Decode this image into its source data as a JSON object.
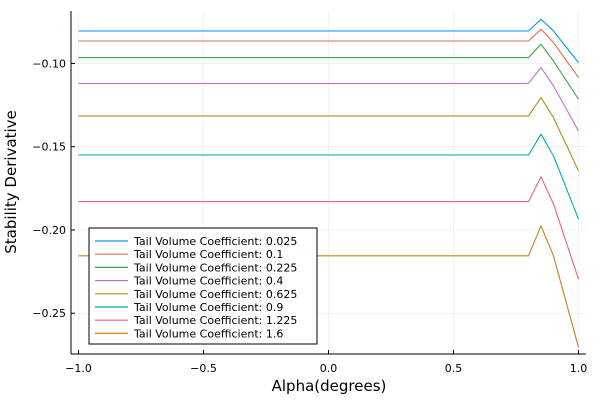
{
  "chart_data": {
    "type": "line",
    "title": "",
    "xlabel": "Alpha(degrees)",
    "ylabel": "Stability Derivative",
    "xlim": [
      -1.03,
      1.03
    ],
    "ylim": [
      -0.2745,
      -0.0685
    ],
    "xticks": [
      -1.0,
      -0.5,
      0.0,
      0.5,
      1.0
    ],
    "xtick_labels": [
      "−1.0",
      "−0.5",
      "0.0",
      "0.5",
      "1.0"
    ],
    "yticks": [
      -0.25,
      -0.2,
      -0.15,
      -0.1
    ],
    "ytick_labels": [
      "−0.25",
      "−0.20",
      "−0.15",
      "−0.10"
    ],
    "grid": true,
    "legend_position": "bottom-left",
    "x": [
      -1.0,
      0.8,
      0.85,
      0.9,
      1.0
    ],
    "series": [
      {
        "name": "Tail Volume Coefficient: 0.025",
        "color": "#009af9",
        "values": [
          -0.0805,
          -0.0805,
          -0.0735,
          -0.0805,
          -0.0995
        ]
      },
      {
        "name": "Tail Volume Coefficient: 0.1",
        "color": "#e26f46",
        "values": [
          -0.0865,
          -0.0865,
          -0.0795,
          -0.0875,
          -0.1085
        ]
      },
      {
        "name": "Tail Volume Coefficient: 0.225",
        "color": "#3da44d",
        "values": [
          -0.0965,
          -0.0965,
          -0.0885,
          -0.0985,
          -0.1215
        ]
      },
      {
        "name": "Tail Volume Coefficient: 0.4",
        "color": "#c271d2",
        "values": [
          -0.112,
          -0.112,
          -0.1025,
          -0.1135,
          -0.1405
        ]
      },
      {
        "name": "Tail Volume Coefficient: 0.625",
        "color": "#ac8d18",
        "values": [
          -0.1315,
          -0.1315,
          -0.1205,
          -0.1325,
          -0.1645
        ]
      },
      {
        "name": "Tail Volume Coefficient: 0.9",
        "color": "#00a9ad",
        "values": [
          -0.155,
          -0.155,
          -0.1425,
          -0.1555,
          -0.1935
        ]
      },
      {
        "name": "Tail Volume Coefficient: 1.225",
        "color": "#ed5d92",
        "values": [
          -0.183,
          -0.183,
          -0.168,
          -0.1845,
          -0.2295
        ]
      },
      {
        "name": "Tail Volume Coefficient: 1.6",
        "color": "#c68125",
        "values": [
          -0.2155,
          -0.2155,
          -0.1975,
          -0.2155,
          -0.2705
        ]
      }
    ]
  }
}
